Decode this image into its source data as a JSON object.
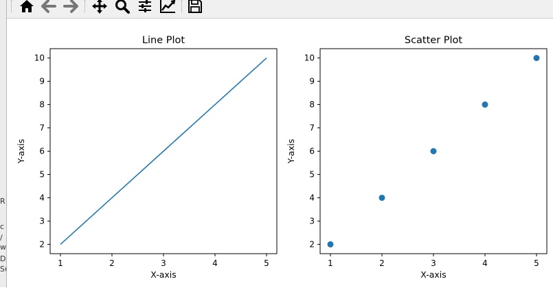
{
  "background_window": {
    "fragments": [
      "R",
      "c",
      "/",
      "wa",
      "D/",
      "Su"
    ]
  },
  "toolbar": {
    "buttons": [
      {
        "icon": "home-icon",
        "name": "home-button"
      },
      {
        "icon": "back-arrow-icon",
        "name": "back-button"
      },
      {
        "icon": "forward-arrow-icon",
        "name": "forward-button"
      },
      {
        "icon": "pan-move-icon",
        "name": "pan-button"
      },
      {
        "icon": "zoom-magnifier-icon",
        "name": "zoom-button"
      },
      {
        "icon": "subplots-sliders-icon",
        "name": "configure-subplots-button"
      },
      {
        "icon": "edit-axes-line-icon",
        "name": "edit-axes-button"
      },
      {
        "icon": "save-disk-icon",
        "name": "save-button"
      }
    ]
  },
  "chart_data": [
    {
      "type": "line",
      "title": "Line Plot",
      "xlabel": "X-axis",
      "ylabel": "Y-axis",
      "x": [
        1,
        2,
        3,
        4,
        5
      ],
      "y": [
        2,
        4,
        6,
        8,
        10
      ],
      "xlim": [
        0.8,
        5.2
      ],
      "ylim": [
        1.6,
        10.4
      ],
      "xticks": [
        1,
        2,
        3,
        4,
        5
      ],
      "yticks": [
        2,
        3,
        4,
        5,
        6,
        7,
        8,
        9,
        10
      ],
      "color": "#1f77b4",
      "grid": false
    },
    {
      "type": "scatter",
      "title": "Scatter Plot",
      "xlabel": "X-axis",
      "ylabel": "Y-axis",
      "x": [
        1,
        2,
        3,
        4,
        5
      ],
      "y": [
        2,
        4,
        6,
        8,
        10
      ],
      "xlim": [
        0.8,
        5.2
      ],
      "ylim": [
        1.6,
        10.4
      ],
      "xticks": [
        1,
        2,
        3,
        4,
        5
      ],
      "yticks": [
        2,
        3,
        4,
        5,
        6,
        7,
        8,
        9,
        10
      ],
      "color": "#1f77b4",
      "grid": false
    }
  ]
}
